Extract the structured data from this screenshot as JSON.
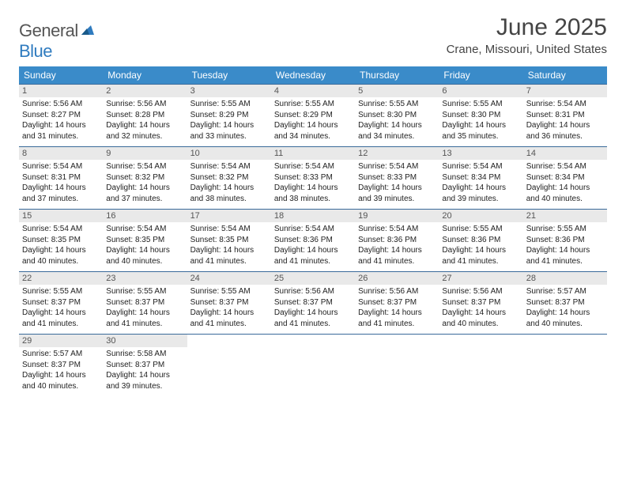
{
  "brand": {
    "part1": "General",
    "part2": "Blue"
  },
  "title": "June 2025",
  "location": "Crane, Missouri, United States",
  "colors": {
    "header_bg": "#3a8bc9",
    "header_text": "#ffffff",
    "daynum_bg": "#e9e9e9",
    "row_border": "#3a6a9a",
    "brand_gray": "#555555",
    "brand_blue": "#2f7bbf"
  },
  "typography": {
    "title_fontsize": 30,
    "location_fontsize": 15,
    "header_fontsize": 12,
    "body_fontsize": 10
  },
  "day_names": [
    "Sunday",
    "Monday",
    "Tuesday",
    "Wednesday",
    "Thursday",
    "Friday",
    "Saturday"
  ],
  "weeks": [
    [
      {
        "n": "1",
        "sunrise": "Sunrise: 5:56 AM",
        "sunset": "Sunset: 8:27 PM",
        "day1": "Daylight: 14 hours",
        "day2": "and 31 minutes."
      },
      {
        "n": "2",
        "sunrise": "Sunrise: 5:56 AM",
        "sunset": "Sunset: 8:28 PM",
        "day1": "Daylight: 14 hours",
        "day2": "and 32 minutes."
      },
      {
        "n": "3",
        "sunrise": "Sunrise: 5:55 AM",
        "sunset": "Sunset: 8:29 PM",
        "day1": "Daylight: 14 hours",
        "day2": "and 33 minutes."
      },
      {
        "n": "4",
        "sunrise": "Sunrise: 5:55 AM",
        "sunset": "Sunset: 8:29 PM",
        "day1": "Daylight: 14 hours",
        "day2": "and 34 minutes."
      },
      {
        "n": "5",
        "sunrise": "Sunrise: 5:55 AM",
        "sunset": "Sunset: 8:30 PM",
        "day1": "Daylight: 14 hours",
        "day2": "and 34 minutes."
      },
      {
        "n": "6",
        "sunrise": "Sunrise: 5:55 AM",
        "sunset": "Sunset: 8:30 PM",
        "day1": "Daylight: 14 hours",
        "day2": "and 35 minutes."
      },
      {
        "n": "7",
        "sunrise": "Sunrise: 5:54 AM",
        "sunset": "Sunset: 8:31 PM",
        "day1": "Daylight: 14 hours",
        "day2": "and 36 minutes."
      }
    ],
    [
      {
        "n": "8",
        "sunrise": "Sunrise: 5:54 AM",
        "sunset": "Sunset: 8:31 PM",
        "day1": "Daylight: 14 hours",
        "day2": "and 37 minutes."
      },
      {
        "n": "9",
        "sunrise": "Sunrise: 5:54 AM",
        "sunset": "Sunset: 8:32 PM",
        "day1": "Daylight: 14 hours",
        "day2": "and 37 minutes."
      },
      {
        "n": "10",
        "sunrise": "Sunrise: 5:54 AM",
        "sunset": "Sunset: 8:32 PM",
        "day1": "Daylight: 14 hours",
        "day2": "and 38 minutes."
      },
      {
        "n": "11",
        "sunrise": "Sunrise: 5:54 AM",
        "sunset": "Sunset: 8:33 PM",
        "day1": "Daylight: 14 hours",
        "day2": "and 38 minutes."
      },
      {
        "n": "12",
        "sunrise": "Sunrise: 5:54 AM",
        "sunset": "Sunset: 8:33 PM",
        "day1": "Daylight: 14 hours",
        "day2": "and 39 minutes."
      },
      {
        "n": "13",
        "sunrise": "Sunrise: 5:54 AM",
        "sunset": "Sunset: 8:34 PM",
        "day1": "Daylight: 14 hours",
        "day2": "and 39 minutes."
      },
      {
        "n": "14",
        "sunrise": "Sunrise: 5:54 AM",
        "sunset": "Sunset: 8:34 PM",
        "day1": "Daylight: 14 hours",
        "day2": "and 40 minutes."
      }
    ],
    [
      {
        "n": "15",
        "sunrise": "Sunrise: 5:54 AM",
        "sunset": "Sunset: 8:35 PM",
        "day1": "Daylight: 14 hours",
        "day2": "and 40 minutes."
      },
      {
        "n": "16",
        "sunrise": "Sunrise: 5:54 AM",
        "sunset": "Sunset: 8:35 PM",
        "day1": "Daylight: 14 hours",
        "day2": "and 40 minutes."
      },
      {
        "n": "17",
        "sunrise": "Sunrise: 5:54 AM",
        "sunset": "Sunset: 8:35 PM",
        "day1": "Daylight: 14 hours",
        "day2": "and 41 minutes."
      },
      {
        "n": "18",
        "sunrise": "Sunrise: 5:54 AM",
        "sunset": "Sunset: 8:36 PM",
        "day1": "Daylight: 14 hours",
        "day2": "and 41 minutes."
      },
      {
        "n": "19",
        "sunrise": "Sunrise: 5:54 AM",
        "sunset": "Sunset: 8:36 PM",
        "day1": "Daylight: 14 hours",
        "day2": "and 41 minutes."
      },
      {
        "n": "20",
        "sunrise": "Sunrise: 5:55 AM",
        "sunset": "Sunset: 8:36 PM",
        "day1": "Daylight: 14 hours",
        "day2": "and 41 minutes."
      },
      {
        "n": "21",
        "sunrise": "Sunrise: 5:55 AM",
        "sunset": "Sunset: 8:36 PM",
        "day1": "Daylight: 14 hours",
        "day2": "and 41 minutes."
      }
    ],
    [
      {
        "n": "22",
        "sunrise": "Sunrise: 5:55 AM",
        "sunset": "Sunset: 8:37 PM",
        "day1": "Daylight: 14 hours",
        "day2": "and 41 minutes."
      },
      {
        "n": "23",
        "sunrise": "Sunrise: 5:55 AM",
        "sunset": "Sunset: 8:37 PM",
        "day1": "Daylight: 14 hours",
        "day2": "and 41 minutes."
      },
      {
        "n": "24",
        "sunrise": "Sunrise: 5:55 AM",
        "sunset": "Sunset: 8:37 PM",
        "day1": "Daylight: 14 hours",
        "day2": "and 41 minutes."
      },
      {
        "n": "25",
        "sunrise": "Sunrise: 5:56 AM",
        "sunset": "Sunset: 8:37 PM",
        "day1": "Daylight: 14 hours",
        "day2": "and 41 minutes."
      },
      {
        "n": "26",
        "sunrise": "Sunrise: 5:56 AM",
        "sunset": "Sunset: 8:37 PM",
        "day1": "Daylight: 14 hours",
        "day2": "and 41 minutes."
      },
      {
        "n": "27",
        "sunrise": "Sunrise: 5:56 AM",
        "sunset": "Sunset: 8:37 PM",
        "day1": "Daylight: 14 hours",
        "day2": "and 40 minutes."
      },
      {
        "n": "28",
        "sunrise": "Sunrise: 5:57 AM",
        "sunset": "Sunset: 8:37 PM",
        "day1": "Daylight: 14 hours",
        "day2": "and 40 minutes."
      }
    ],
    [
      {
        "n": "29",
        "sunrise": "Sunrise: 5:57 AM",
        "sunset": "Sunset: 8:37 PM",
        "day1": "Daylight: 14 hours",
        "day2": "and 40 minutes."
      },
      {
        "n": "30",
        "sunrise": "Sunrise: 5:58 AM",
        "sunset": "Sunset: 8:37 PM",
        "day1": "Daylight: 14 hours",
        "day2": "and 39 minutes."
      },
      null,
      null,
      null,
      null,
      null
    ]
  ]
}
